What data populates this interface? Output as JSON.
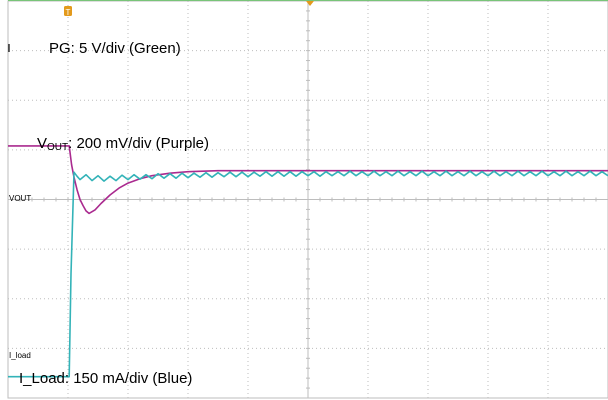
{
  "chart_data": {
    "type": "line",
    "grid": true,
    "divisions": {
      "x": 10,
      "y": 8
    },
    "annotations": {
      "pg": "PG: 5 V/div (Green)",
      "vout_main": "V",
      "vout_sub": "OUT",
      "vout_rest": ": 200 mV/div (Purple)",
      "iload": "I_Load: 150 mA/div (Blue)"
    },
    "markers": {
      "vout": "VOUT",
      "iload": "I_load",
      "trigger_glyph": "T"
    },
    "series": [
      {
        "color": "#33cc33",
        "x": [
          0,
          10
        ],
        "y": [
          8.03,
          8.03
        ]
      },
      {
        "color": "#aa2a8f",
        "x": [
          0,
          0.3,
          0.6,
          1.02,
          1.06,
          1.1,
          1.15,
          1.2,
          1.25,
          1.3,
          1.35,
          1.45,
          1.55,
          1.7,
          1.85,
          2.0,
          2.2,
          2.4,
          2.7,
          3.0,
          3.5,
          4.0,
          5.0,
          6.0,
          7.0,
          8.0,
          9.0,
          10.0
        ],
        "y": [
          5.08,
          5.08,
          5.08,
          5.08,
          4.7,
          4.45,
          4.2,
          4.0,
          3.88,
          3.77,
          3.72,
          3.79,
          3.92,
          4.09,
          4.23,
          4.33,
          4.42,
          4.48,
          4.53,
          4.56,
          4.58,
          4.58,
          4.58,
          4.58,
          4.58,
          4.58,
          4.58,
          4.58
        ]
      },
      {
        "color": "#33b3b8",
        "x": [
          0,
          0.6,
          1.02,
          1.05,
          1.1,
          1.15,
          1.2,
          1.3,
          1.4,
          1.5,
          1.6,
          1.7,
          1.8,
          1.9,
          2.0,
          2.1,
          2.2,
          2.3,
          2.4,
          2.5,
          2.6,
          2.7,
          2.8,
          2.9,
          3.0,
          3.1,
          3.2,
          3.3,
          3.4,
          3.5,
          3.6,
          3.7,
          3.8,
          3.9,
          4.0,
          4.1,
          4.2,
          4.3,
          4.4,
          4.5,
          4.6,
          4.7,
          4.8,
          4.9,
          5.0,
          5.1,
          5.2,
          5.3,
          5.4,
          5.5,
          5.6,
          5.7,
          5.8,
          5.9,
          6.0,
          6.1,
          6.2,
          6.3,
          6.4,
          6.5,
          6.6,
          6.7,
          6.8,
          6.9,
          7.0,
          7.1,
          7.2,
          7.3,
          7.4,
          7.5,
          7.6,
          7.7,
          7.8,
          7.9,
          8.0,
          8.1,
          8.2,
          8.3,
          8.4,
          8.5,
          8.6,
          8.7,
          8.8,
          8.9,
          9.0,
          9.1,
          9.2,
          9.3,
          9.4,
          9.5,
          9.6,
          9.7,
          9.8,
          9.9,
          10.0
        ],
        "y": [
          0.43,
          0.43,
          0.43,
          2.5,
          4.55,
          4.47,
          4.4,
          4.5,
          4.38,
          4.48,
          4.37,
          4.47,
          4.38,
          4.49,
          4.4,
          4.5,
          4.41,
          4.5,
          4.42,
          4.52,
          4.43,
          4.52,
          4.43,
          4.53,
          4.44,
          4.53,
          4.45,
          4.54,
          4.45,
          4.54,
          4.46,
          4.55,
          4.46,
          4.55,
          4.46,
          4.55,
          4.47,
          4.56,
          4.47,
          4.56,
          4.47,
          4.56,
          4.47,
          4.56,
          4.48,
          4.56,
          4.47,
          4.56,
          4.48,
          4.56,
          4.48,
          4.57,
          4.48,
          4.56,
          4.48,
          4.57,
          4.48,
          4.56,
          4.48,
          4.57,
          4.48,
          4.56,
          4.48,
          4.57,
          4.48,
          4.56,
          4.48,
          4.57,
          4.48,
          4.56,
          4.48,
          4.57,
          4.48,
          4.56,
          4.48,
          4.57,
          4.48,
          4.56,
          4.48,
          4.57,
          4.48,
          4.56,
          4.48,
          4.57,
          4.48,
          4.56,
          4.48,
          4.57,
          4.48,
          4.56,
          4.48,
          4.57,
          4.48,
          4.56,
          4.48
        ]
      }
    ],
    "colors": {
      "grid": "#bdbdbd",
      "trigger_marker": "#e39a1c",
      "background": "#ffffff"
    }
  }
}
